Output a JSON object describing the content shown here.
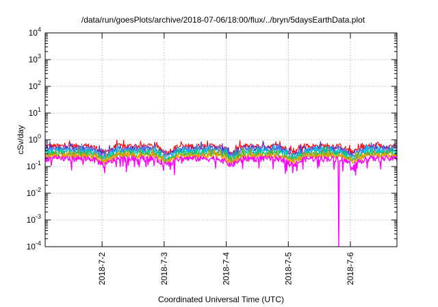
{
  "chart_data": {
    "type": "line",
    "title": "/data/run/goesPlots/archive/2018-07-06/18:00/flux/../bryn/5daysEarthData.plot",
    "xlabel": "Coordinated Universal Time (UTC)",
    "ylabel": "cSv/day",
    "y_scale": "log",
    "ylim": [
      0.0001,
      10000
    ],
    "y_ticks": [
      {
        "base": "10",
        "exp": "-4",
        "value": 0.0001
      },
      {
        "base": "10",
        "exp": "-3",
        "value": 0.001
      },
      {
        "base": "10",
        "exp": "-2",
        "value": 0.01
      },
      {
        "base": "10",
        "exp": "-1",
        "value": 0.1
      },
      {
        "base": "10",
        "exp": "0",
        "value": 1
      },
      {
        "base": "10",
        "exp": "1",
        "value": 10
      },
      {
        "base": "10",
        "exp": "2",
        "value": 100
      },
      {
        "base": "10",
        "exp": "3",
        "value": 1000
      },
      {
        "base": "10",
        "exp": "4",
        "value": 10000
      }
    ],
    "x_type": "datetime",
    "xlim": [
      "2018-07-01T02:00",
      "2018-07-06T18:00"
    ],
    "x_ticks": [
      {
        "label": "2018-7-2",
        "value": "2018-07-02T00:00"
      },
      {
        "label": "2018-7-3",
        "value": "2018-07-03T00:00"
      },
      {
        "label": "2018-7-4",
        "value": "2018-07-04T00:00"
      },
      {
        "label": "2018-7-5",
        "value": "2018-07-05T00:00"
      },
      {
        "label": "2018-7-6",
        "value": "2018-07-06T00:00"
      }
    ],
    "grid": true,
    "legend": "none",
    "series": [
      {
        "color": "#ff0000",
        "level": 0.58
      },
      {
        "color": "#3a3adf",
        "level": 0.48
      },
      {
        "color": "#4a7ae8",
        "level": 0.42
      },
      {
        "color": "#00c8e0",
        "level": 0.36
      },
      {
        "color": "#00c864",
        "level": 0.31
      },
      {
        "color": "#a0a000",
        "level": 0.27
      },
      {
        "color": "#ff9900",
        "level": 0.25
      },
      {
        "color": "#ff00ff",
        "level": 0.2
      }
    ],
    "dips": [
      "2018-07-02T01:00",
      "2018-07-03T01:00",
      "2018-07-04T02:00",
      "2018-07-05T02:00",
      "2018-07-06T01:00"
    ],
    "spike_min": {
      "time": "2018-07-05T19:30",
      "value": 0.0001
    }
  }
}
